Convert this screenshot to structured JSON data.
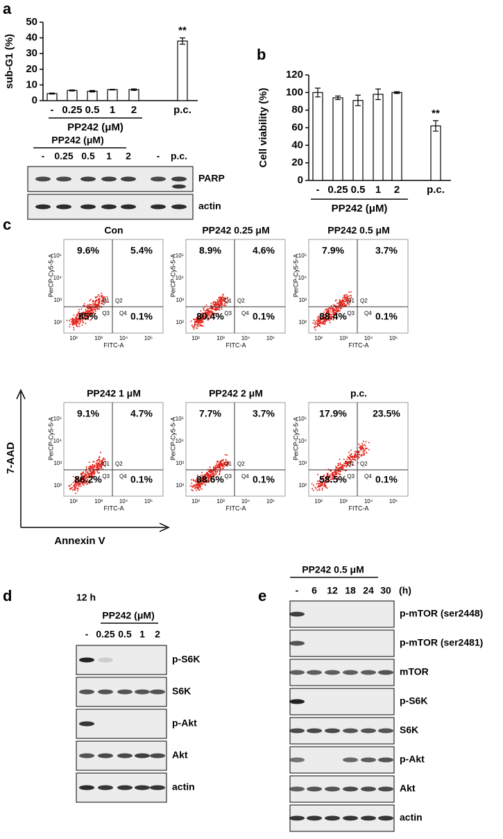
{
  "panel_labels": [
    "a",
    "b",
    "c",
    "d",
    "e"
  ],
  "chart_data": [
    {
      "type": "bar",
      "ylabel": "sub-G1 (%)",
      "xlabel": "PP242 (μM)",
      "categories": [
        "-",
        "0.25",
        "0.5",
        "1",
        "2",
        "p.c."
      ],
      "values": [
        4.5,
        6.5,
        6,
        7,
        7,
        38
      ],
      "errors": [
        0.3,
        0.3,
        0.5,
        0.2,
        0.5,
        2
      ],
      "color": "#ffffff",
      "ylim": [
        0,
        50
      ],
      "yticks": [
        0,
        10,
        20,
        30,
        40,
        50
      ],
      "annotation": "**"
    },
    {
      "type": "bar",
      "ylabel": "Cell viability (%)",
      "xlabel": "PP242 (μM)",
      "categories": [
        "-",
        "0.25",
        "0.5",
        "1",
        "2",
        "p.c."
      ],
      "values": [
        100,
        94,
        91,
        98,
        100,
        62
      ],
      "errors": [
        5,
        2,
        6,
        6,
        1,
        6
      ],
      "color": "#ffffff",
      "ylim": [
        0,
        120
      ],
      "yticks": [
        0,
        20,
        40,
        60,
        80,
        100,
        120
      ],
      "annotation": "**"
    }
  ],
  "blot_a": {
    "header": "PP242 (μM)",
    "lanes": [
      "-",
      "0.25",
      "0.5",
      "1",
      "2",
      "-",
      "p.c."
    ],
    "rows": [
      "PARP",
      "actin"
    ]
  },
  "flow": {
    "y_axis": "7-AAD",
    "x_axis": "Annexin V",
    "channel_y": "PerCP-Cy5-5-A",
    "channel_x": "FITC-A",
    "ticks": [
      "10²",
      "10³",
      "10⁴",
      "10⁵"
    ],
    "quadrants": [
      "Q1",
      "Q2",
      "Q3",
      "Q4"
    ],
    "plots": [
      {
        "title": "Con",
        "q1": "9.6%",
        "q2": "5.4%",
        "q3": "85%",
        "q4": "0.1%"
      },
      {
        "title": "PP242 0.25 μM",
        "q1": "8.9%",
        "q2": "4.6%",
        "q3": "80.4%",
        "q4": "0.1%"
      },
      {
        "title": "PP242 0.5 μM",
        "q1": "7.9%",
        "q2": "3.7%",
        "q3": "88.4%",
        "q4": "0.1%"
      },
      {
        "title": "PP242 1 μM",
        "q1": "9.1%",
        "q2": "4.7%",
        "q3": "86.2%",
        "q4": "0.1%"
      },
      {
        "title": "PP242 2 μM",
        "q1": "7.7%",
        "q2": "3.7%",
        "q3": "88.6%",
        "q4": "0.1%"
      },
      {
        "title": "p.c.",
        "q1": "17.9%",
        "q2": "23.5%",
        "q3": "58.5%",
        "q4": "0.1%"
      }
    ]
  },
  "blot_d": {
    "time": "12 h",
    "header": "PP242 (μM)",
    "lanes": [
      "-",
      "0.25",
      "0.5",
      "1",
      "2"
    ],
    "rows": [
      "p-S6K",
      "S6K",
      "p-Akt",
      "Akt",
      "actin"
    ]
  },
  "blot_e": {
    "header": "PP242 0.5 μM",
    "lanes": [
      "-",
      "6",
      "12",
      "18",
      "24",
      "30"
    ],
    "unit": "(h)",
    "rows": [
      "p-mTOR (ser2448)",
      "p-mTOR (ser2481)",
      "mTOR",
      "p-S6K",
      "S6K",
      "p-Akt",
      "Akt",
      "actin"
    ]
  }
}
